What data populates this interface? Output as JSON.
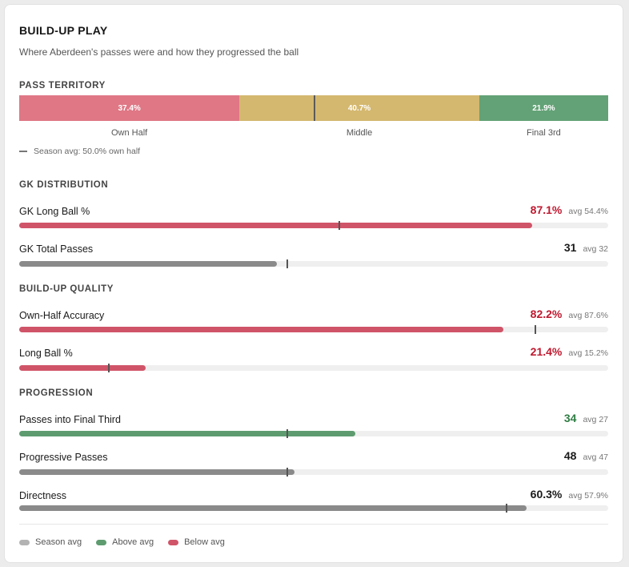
{
  "header": {
    "title": "BUILD-UP PLAY",
    "subtitle": "Where Aberdeen's passes were and how they progressed the ball"
  },
  "colors": {
    "below": "#d05468",
    "above": "#5e9c70",
    "neutral": "#8a8a8a",
    "own_half": "#df7785",
    "middle": "#d4b86f",
    "final_third": "#63a276",
    "text_below": "#c0192f",
    "text_above": "#2f7d43",
    "text_neutral": "#1a1a1a"
  },
  "territory": {
    "section_label": "PASS TERRITORY",
    "segments": [
      {
        "key": "own_half",
        "value": 37.4,
        "display": "37.4%",
        "label": "Own Half"
      },
      {
        "key": "middle",
        "value": 40.7,
        "display": "40.7%",
        "label": "Middle"
      },
      {
        "key": "final_third",
        "value": 21.9,
        "display": "21.9%",
        "label": "Final 3rd"
      }
    ],
    "season_avg_own_half": 50.0,
    "season_note": "Season avg: 50.0% own half"
  },
  "sections": [
    {
      "label": "GK DISTRIBUTION",
      "metrics": [
        {
          "label": "GK Long Ball %",
          "value": "87.1%",
          "avg": "avg 54.4%",
          "status": "below",
          "fill": 0.871,
          "avg_frac": 0.544
        },
        {
          "label": "GK Total Passes",
          "value": "31",
          "avg": "avg 32",
          "status": "neutral",
          "fill": 0.437,
          "avg_frac": 0.455
        }
      ]
    },
    {
      "label": "BUILD-UP QUALITY",
      "metrics": [
        {
          "label": "Own-Half Accuracy",
          "value": "82.2%",
          "avg": "avg 87.6%",
          "status": "below",
          "fill": 0.822,
          "avg_frac": 0.876
        },
        {
          "label": "Long Ball %",
          "value": "21.4%",
          "avg": "avg 15.2%",
          "status": "below",
          "fill": 0.214,
          "avg_frac": 0.152
        }
      ]
    },
    {
      "label": "PROGRESSION",
      "metrics": [
        {
          "label": "Passes into Final Third",
          "value": "34",
          "avg": "avg 27",
          "status": "above",
          "fill": 0.57,
          "avg_frac": 0.455
        },
        {
          "label": "Progressive Passes",
          "value": "48",
          "avg": "avg 47",
          "status": "neutral",
          "fill": 0.468,
          "avg_frac": 0.455
        },
        {
          "label": "Directness",
          "value": "60.3%",
          "avg": "avg 57.9%",
          "status": "neutral",
          "fill": 0.862,
          "avg_frac": 0.827
        }
      ]
    }
  ],
  "legend": [
    {
      "label": "Season avg",
      "color": "#b3b3b3"
    },
    {
      "label": "Above avg",
      "color": "#5e9c70"
    },
    {
      "label": "Below avg",
      "color": "#d05468"
    }
  ]
}
